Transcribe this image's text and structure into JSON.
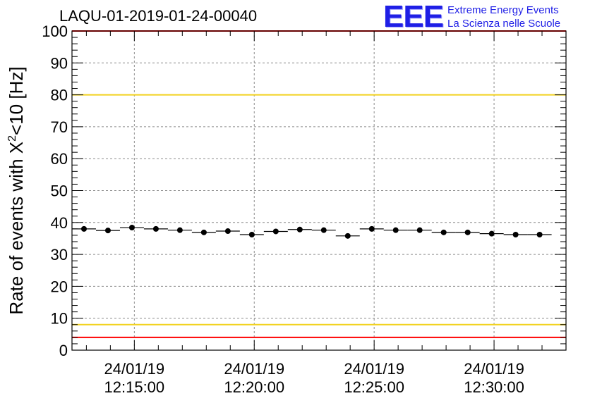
{
  "header": {
    "run_id": "LAQU-01-2019-01-24-00040",
    "logo_mark": "EEE",
    "logo_line1": "Extreme Energy Events",
    "logo_line2": "La Scienza nelle Scuole"
  },
  "colors": {
    "red_threshold": "#ff0000",
    "yellow_threshold": "#f2d21e",
    "grid": "#8c8c8c",
    "marker": "#000000",
    "logo": "#1f1fe6"
  },
  "chart_data": {
    "type": "scatter",
    "title": "LAQU-01-2019-01-24-00040",
    "xlabel": "",
    "ylabel": "Rate of events with X²<10 [Hz]",
    "ylabel_parts": {
      "pre": "Rate of events with X",
      "sup": "2",
      "post": "<10 [Hz]"
    },
    "ylim": [
      0,
      100
    ],
    "yticks": [
      0,
      10,
      20,
      30,
      40,
      50,
      60,
      70,
      80,
      90,
      100
    ],
    "xlim_minutes": [
      12.4,
      33.0
    ],
    "xticks": [
      {
        "minutes": 15,
        "date": "24/01/19",
        "time": "12:15:00"
      },
      {
        "minutes": 20,
        "date": "24/01/19",
        "time": "12:20:00"
      },
      {
        "minutes": 25,
        "date": "24/01/19",
        "time": "12:25:00"
      },
      {
        "minutes": 30,
        "date": "24/01/19",
        "time": "12:30:00"
      }
    ],
    "bin_width_minutes": 1.0,
    "grid": true,
    "x": [
      12.9,
      13.9,
      14.9,
      15.9,
      16.9,
      17.9,
      18.9,
      19.9,
      20.9,
      21.9,
      22.9,
      23.9,
      24.9,
      25.9,
      26.9,
      27.9,
      28.9,
      29.9,
      30.9,
      31.9
    ],
    "values": [
      38.0,
      37.5,
      38.4,
      38.0,
      37.6,
      36.9,
      37.3,
      36.2,
      37.2,
      37.8,
      37.6,
      35.8,
      38.0,
      37.6,
      37.6,
      36.9,
      36.9,
      36.5,
      36.2,
      36.2
    ],
    "thresholds": [
      {
        "value": 100,
        "color": "red"
      },
      {
        "value": 80,
        "color": "yellow"
      },
      {
        "value": 8,
        "color": "yellow"
      },
      {
        "value": 4,
        "color": "red"
      }
    ]
  }
}
